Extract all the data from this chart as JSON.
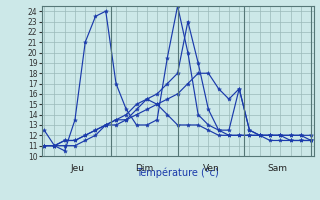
{
  "xlabel": "Température (°c)",
  "ylim": [
    10,
    24.5
  ],
  "yticks": [
    10,
    11,
    12,
    13,
    14,
    15,
    16,
    17,
    18,
    19,
    20,
    21,
    22,
    23,
    24
  ],
  "background_color": "#cce8e8",
  "line_color": "#1a3aab",
  "grid_color": "#9ababa",
  "x_labels": [
    "Jeu",
    "Dim",
    "Ven",
    "Sam"
  ],
  "x_dividers": [
    0,
    26,
    52,
    78,
    104
  ],
  "xlim": [
    -1,
    105
  ],
  "series": [
    {
      "x": [
        0,
        4,
        8,
        12,
        16,
        20,
        24,
        28,
        32,
        36,
        40,
        44,
        48,
        52,
        56,
        60,
        64,
        68,
        72,
        76,
        80,
        84,
        88,
        92,
        96,
        100,
        104
      ],
      "y": [
        12.5,
        11.0,
        10.5,
        13.5,
        21.0,
        23.5,
        24.0,
        17.0,
        14.5,
        13.0,
        13.0,
        13.5,
        19.5,
        24.5,
        20.0,
        14.0,
        13.0,
        12.5,
        12.5,
        16.5,
        12.5,
        12.0,
        11.5,
        11.5,
        11.5,
        11.5,
        11.5
      ]
    },
    {
      "x": [
        0,
        4,
        8,
        12,
        16,
        20,
        24,
        28,
        32,
        36,
        40,
        44,
        48,
        52,
        56,
        60,
        64,
        68,
        72,
        76,
        80,
        84,
        88,
        92,
        96,
        100,
        104
      ],
      "y": [
        11.0,
        11.0,
        11.0,
        11.0,
        11.5,
        12.0,
        13.0,
        13.5,
        13.5,
        14.0,
        14.5,
        15.0,
        15.5,
        16.0,
        17.0,
        18.0,
        18.0,
        16.5,
        15.5,
        16.5,
        12.5,
        12.0,
        12.0,
        12.0,
        12.0,
        12.0,
        12.0
      ]
    },
    {
      "x": [
        0,
        4,
        8,
        12,
        16,
        20,
        24,
        28,
        32,
        36,
        40,
        44,
        48,
        52,
        56,
        60,
        64,
        68,
        72,
        76,
        80,
        84,
        88,
        92,
        96,
        100,
        104
      ],
      "y": [
        11.0,
        11.0,
        11.5,
        11.5,
        12.0,
        12.5,
        13.0,
        13.0,
        13.5,
        14.5,
        15.5,
        15.0,
        14.0,
        13.0,
        13.0,
        13.0,
        12.5,
        12.0,
        12.0,
        12.0,
        12.0,
        12.0,
        12.0,
        12.0,
        12.0,
        12.0,
        11.5
      ]
    },
    {
      "x": [
        0,
        4,
        8,
        12,
        16,
        20,
        24,
        28,
        32,
        36,
        40,
        44,
        48,
        52,
        56,
        60,
        64,
        68,
        72,
        76,
        80,
        84,
        88,
        92,
        96,
        100,
        104
      ],
      "y": [
        11.0,
        11.0,
        11.5,
        11.5,
        12.0,
        12.5,
        13.0,
        13.5,
        14.0,
        15.0,
        15.5,
        16.0,
        17.0,
        18.0,
        23.0,
        19.0,
        14.5,
        12.5,
        12.0,
        12.0,
        12.0,
        12.0,
        12.0,
        12.0,
        11.5,
        11.5,
        11.5
      ]
    }
  ]
}
